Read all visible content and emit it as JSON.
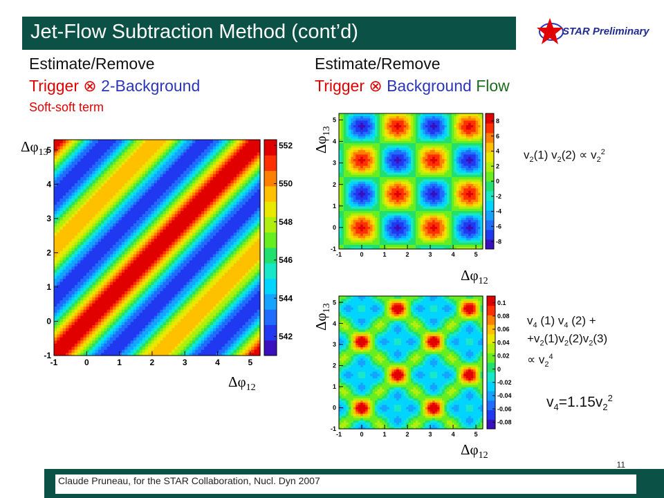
{
  "slide": {
    "title": "Jet-Flow Subtraction Method (cont’d)",
    "logo_text": "STAR Preliminary",
    "footer": "Claude Pruneau, for the STAR Collaboration, Nucl. Dyn 2007",
    "page_number": "11"
  },
  "left": {
    "line1": "Estimate/Remove",
    "line2_a": "Trigger ⊗ ",
    "line2_b": "2-Background",
    "line3": "Soft-soft term"
  },
  "right": {
    "line1": "Estimate/Remove",
    "line2_a": "Trigger ⊗ ",
    "line2_b": "Background",
    "line2_c": " Flow"
  },
  "axes": {
    "x_var": "Δφ",
    "x_sub": "12",
    "y_var": "Δφ",
    "y_sub": "13"
  },
  "formulas": {
    "f1": {
      "a": "v",
      "a_sub": "2",
      "b": "(1) v",
      "b_sub": "2",
      "c": "(2) ∝ v",
      "c_sub": "2",
      "c_sup": "2"
    },
    "f2": {
      "l1": "v",
      "l1_s1": "4",
      "l1_b": " (1) v",
      "l1_s2": "4",
      "l1_c": " (2) +",
      "l2": "+v",
      "l2_s1": "2",
      "l2_b": "(1)v",
      "l2_s2": "2",
      "l2_c": "(2)v",
      "l2_s3": "2",
      "l2_d": "(3)",
      "l3": "∝ v",
      "l3_sub": "2",
      "l3_sup": "4"
    },
    "f3": {
      "a": "v",
      "a_sub": "4",
      "b": "=1.15v",
      "b_sub": "2",
      "b_sup": "2"
    }
  },
  "colors": {
    "title_bg": "#0b5145",
    "red": "#e00000",
    "blue": "#2b35b8",
    "green": "#1d6b1d"
  },
  "chart_data": [
    {
      "type": "heatmap",
      "xlim": [
        -1,
        5.3
      ],
      "ylim": [
        -1,
        5.3
      ],
      "xticks": [
        "-1",
        "0",
        "1",
        "2",
        "3",
        "4",
        "5"
      ],
      "yticks": [
        "-1",
        "0",
        "1",
        "2",
        "3",
        "4",
        "5"
      ],
      "zlim": [
        541,
        552.3
      ],
      "zticks": [
        "542",
        "544",
        "546",
        "548",
        "550",
        "552"
      ]
    },
    {
      "type": "heatmap",
      "xlim": [
        -1,
        5.3
      ],
      "ylim": [
        -1,
        5.3
      ],
      "xticks": [
        "-1",
        "0",
        "1",
        "2",
        "3",
        "4",
        "5"
      ],
      "yticks": [
        "-1",
        "0",
        "1",
        "2",
        "3",
        "4",
        "5"
      ],
      "zlim": [
        -9,
        9
      ],
      "zticks": [
        "-8",
        "-6",
        "-4",
        "-2",
        "0",
        "2",
        "4",
        "6",
        "8"
      ]
    },
    {
      "type": "heatmap",
      "xlim": [
        -1,
        5.3
      ],
      "ylim": [
        -1,
        5.3
      ],
      "xticks": [
        "-1",
        "0",
        "1",
        "2",
        "3",
        "4",
        "5"
      ],
      "yticks": [
        "-1",
        "0",
        "1",
        "2",
        "3",
        "4",
        "5"
      ],
      "zlim": [
        -0.09,
        0.11
      ],
      "zticks": [
        "-0.08",
        "-0.06",
        "-0.04",
        "-0.02",
        "0",
        "0.02",
        "0.04",
        "0.06",
        "0.08",
        "0.1"
      ]
    }
  ]
}
